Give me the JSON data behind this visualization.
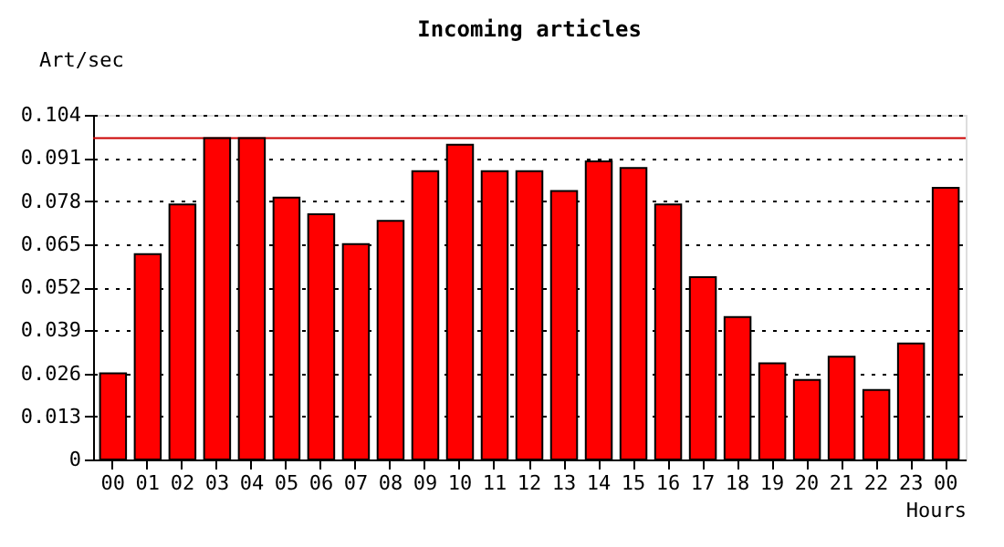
{
  "chart_data": {
    "type": "bar",
    "title": "Incoming articles",
    "xlabel": "Hours",
    "ylabel": "Art/sec",
    "categories": [
      "00",
      "01",
      "02",
      "03",
      "04",
      "05",
      "06",
      "07",
      "08",
      "09",
      "10",
      "11",
      "12",
      "13",
      "14",
      "15",
      "16",
      "17",
      "18",
      "19",
      "20",
      "21",
      "22",
      "23",
      "00"
    ],
    "values": [
      0.026,
      0.062,
      0.077,
      0.097,
      0.097,
      0.079,
      0.074,
      0.065,
      0.072,
      0.087,
      0.095,
      0.087,
      0.087,
      0.081,
      0.09,
      0.088,
      0.077,
      0.055,
      0.043,
      0.029,
      0.024,
      0.031,
      0.021,
      0.035,
      0.082
    ],
    "color": "#ff0000",
    "ylim": [
      0,
      0.104
    ],
    "yticks": [
      0,
      0.013,
      0.026,
      0.039,
      0.052,
      0.065,
      0.078,
      0.091,
      0.104
    ],
    "ref_lines": [
      {
        "axis": "y",
        "value": 0.097,
        "color": "#cc0000"
      }
    ],
    "grid": "y"
  }
}
